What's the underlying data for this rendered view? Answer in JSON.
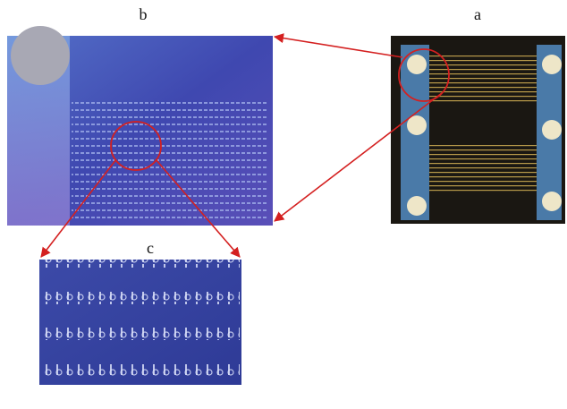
{
  "panels": [
    {
      "label": "b"
    },
    {
      "label": "a"
    },
    {
      "label": "c"
    }
  ]
}
